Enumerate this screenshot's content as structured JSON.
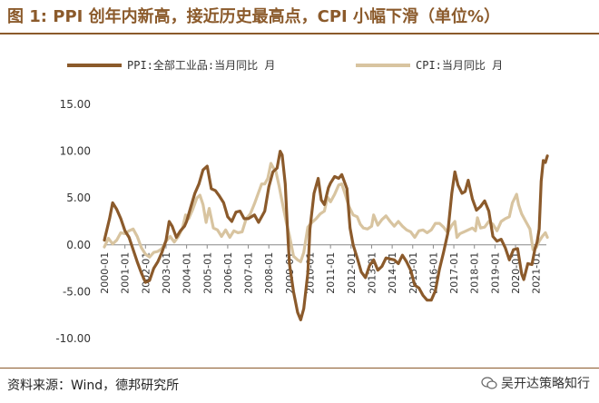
{
  "title": "图 1: PPI 创年内新高，接近历史最高点，CPI 小幅下滑（单位%）",
  "source": "资料来源：Wind，德邦研究所",
  "watermark": "吴开达策略知行",
  "colors": {
    "ppi": "#8b5a2b",
    "cpi": "#d8c4a0",
    "title": "#8b5a2b"
  },
  "chart_data": {
    "type": "line",
    "ylim": [
      -10,
      15
    ],
    "y_ticks": [
      -10,
      -5,
      0,
      5,
      10,
      15
    ],
    "y_tick_labels": [
      "-10.00",
      "-5.00",
      "0.00",
      "5.00",
      "10.00",
      "15.00"
    ],
    "x_tick_labels": [
      "2000-01",
      "2001-01",
      "2002-01",
      "2003-01",
      "2004-01",
      "2005-01",
      "2006-01",
      "2007-01",
      "2008-01",
      "2009-01",
      "2010-01",
      "2011-01",
      "2012-01",
      "2013-01",
      "2014-01",
      "2015-01",
      "2016-01",
      "2017-01",
      "2018-01",
      "2019-01",
      "2020-01",
      "2021-01"
    ],
    "xlim": [
      2000.0,
      2021.5
    ],
    "grid": false,
    "legend_position": "top",
    "series": [
      {
        "name": "PPI:全部工业品:当月同比 月",
        "color": "#8b5a2b",
        "points": [
          [
            2000.0,
            0.5
          ],
          [
            2000.25,
            2.8
          ],
          [
            2000.4,
            4.5
          ],
          [
            2000.6,
            3.8
          ],
          [
            2000.8,
            2.8
          ],
          [
            2001.0,
            1.5
          ],
          [
            2001.2,
            0.8
          ],
          [
            2001.4,
            -0.5
          ],
          [
            2001.6,
            -1.8
          ],
          [
            2001.8,
            -3.0
          ],
          [
            2002.0,
            -4.0
          ],
          [
            2002.2,
            -3.8
          ],
          [
            2002.4,
            -2.5
          ],
          [
            2002.6,
            -1.8
          ],
          [
            2002.8,
            -0.8
          ],
          [
            2003.0,
            0.5
          ],
          [
            2003.15,
            2.5
          ],
          [
            2003.3,
            2.0
          ],
          [
            2003.5,
            0.8
          ],
          [
            2003.7,
            1.5
          ],
          [
            2003.9,
            2.0
          ],
          [
            2004.0,
            2.5
          ],
          [
            2004.2,
            4.0
          ],
          [
            2004.4,
            5.5
          ],
          [
            2004.6,
            6.5
          ],
          [
            2004.8,
            8.0
          ],
          [
            2005.0,
            8.4
          ],
          [
            2005.2,
            6.0
          ],
          [
            2005.4,
            5.8
          ],
          [
            2005.6,
            5.2
          ],
          [
            2005.8,
            4.5
          ],
          [
            2006.0,
            3.0
          ],
          [
            2006.2,
            2.5
          ],
          [
            2006.4,
            3.5
          ],
          [
            2006.6,
            3.6
          ],
          [
            2006.8,
            2.8
          ],
          [
            2007.0,
            2.8
          ],
          [
            2007.3,
            3.2
          ],
          [
            2007.5,
            2.4
          ],
          [
            2007.8,
            3.6
          ],
          [
            2008.0,
            6.2
          ],
          [
            2008.2,
            7.8
          ],
          [
            2008.4,
            8.2
          ],
          [
            2008.55,
            10.0
          ],
          [
            2008.65,
            9.6
          ],
          [
            2008.8,
            6.5
          ],
          [
            2008.9,
            2.0
          ],
          [
            2009.0,
            -2.0
          ],
          [
            2009.2,
            -5.0
          ],
          [
            2009.4,
            -7.2
          ],
          [
            2009.55,
            -8.0
          ],
          [
            2009.7,
            -6.8
          ],
          [
            2009.9,
            -3.0
          ],
          [
            2010.0,
            1.7
          ],
          [
            2010.2,
            5.5
          ],
          [
            2010.4,
            7.1
          ],
          [
            2010.55,
            4.8
          ],
          [
            2010.7,
            4.3
          ],
          [
            2010.9,
            6.1
          ],
          [
            2011.0,
            6.6
          ],
          [
            2011.2,
            7.3
          ],
          [
            2011.4,
            7.1
          ],
          [
            2011.55,
            7.5
          ],
          [
            2011.8,
            6.0
          ],
          [
            2011.95,
            1.8
          ],
          [
            2012.1,
            0.0
          ],
          [
            2012.3,
            -1.4
          ],
          [
            2012.5,
            -2.9
          ],
          [
            2012.7,
            -3.5
          ],
          [
            2012.9,
            -2.2
          ],
          [
            2013.1,
            -1.6
          ],
          [
            2013.3,
            -2.7
          ],
          [
            2013.5,
            -2.3
          ],
          [
            2013.7,
            -1.4
          ],
          [
            2013.9,
            -1.5
          ],
          [
            2014.1,
            -1.6
          ],
          [
            2014.3,
            -2.0
          ],
          [
            2014.5,
            -1.1
          ],
          [
            2014.7,
            -1.8
          ],
          [
            2014.9,
            -2.7
          ],
          [
            2015.1,
            -4.3
          ],
          [
            2015.3,
            -4.6
          ],
          [
            2015.5,
            -5.4
          ],
          [
            2015.7,
            -5.9
          ],
          [
            2015.9,
            -5.9
          ],
          [
            2016.1,
            -4.9
          ],
          [
            2016.3,
            -2.6
          ],
          [
            2016.5,
            -0.8
          ],
          [
            2016.7,
            1.2
          ],
          [
            2016.9,
            5.5
          ],
          [
            2017.05,
            7.8
          ],
          [
            2017.2,
            6.4
          ],
          [
            2017.4,
            5.5
          ],
          [
            2017.55,
            5.7
          ],
          [
            2017.7,
            6.9
          ],
          [
            2017.9,
            4.9
          ],
          [
            2018.1,
            3.7
          ],
          [
            2018.3,
            4.1
          ],
          [
            2018.5,
            4.7
          ],
          [
            2018.7,
            3.6
          ],
          [
            2018.9,
            0.9
          ],
          [
            2019.1,
            0.4
          ],
          [
            2019.3,
            0.6
          ],
          [
            2019.5,
            -0.3
          ],
          [
            2019.7,
            -1.6
          ],
          [
            2019.9,
            -0.5
          ],
          [
            2020.1,
            -0.4
          ],
          [
            2020.3,
            -3.1
          ],
          [
            2020.4,
            -3.7
          ],
          [
            2020.6,
            -2.0
          ],
          [
            2020.8,
            -2.1
          ],
          [
            2020.95,
            -0.4
          ],
          [
            2021.05,
            0.3
          ],
          [
            2021.15,
            1.7
          ],
          [
            2021.25,
            6.8
          ],
          [
            2021.35,
            9.0
          ],
          [
            2021.45,
            8.8
          ],
          [
            2021.55,
            9.5
          ]
        ]
      },
      {
        "name": "CPI:当月同比 月",
        "color": "#d8c4a0",
        "points": [
          [
            2000.0,
            -0.2
          ],
          [
            2000.2,
            0.7
          ],
          [
            2000.4,
            0.1
          ],
          [
            2000.6,
            0.5
          ],
          [
            2000.8,
            1.3
          ],
          [
            2001.0,
            1.2
          ],
          [
            2001.2,
            1.5
          ],
          [
            2001.4,
            1.7
          ],
          [
            2001.6,
            0.9
          ],
          [
            2001.8,
            -0.3
          ],
          [
            2002.0,
            -1.0
          ],
          [
            2002.2,
            -1.3
          ],
          [
            2002.4,
            -0.8
          ],
          [
            2002.6,
            -0.7
          ],
          [
            2002.8,
            -0.4
          ],
          [
            2003.0,
            0.4
          ],
          [
            2003.2,
            0.9
          ],
          [
            2003.4,
            0.3
          ],
          [
            2003.6,
            0.9
          ],
          [
            2003.8,
            1.8
          ],
          [
            2003.95,
            3.2
          ],
          [
            2004.1,
            2.8
          ],
          [
            2004.3,
            3.8
          ],
          [
            2004.5,
            5.0
          ],
          [
            2004.65,
            5.3
          ],
          [
            2004.8,
            4.3
          ],
          [
            2004.95,
            2.4
          ],
          [
            2005.1,
            3.9
          ],
          [
            2005.3,
            1.8
          ],
          [
            2005.5,
            1.6
          ],
          [
            2005.7,
            0.9
          ],
          [
            2005.9,
            1.6
          ],
          [
            2006.1,
            0.8
          ],
          [
            2006.3,
            1.5
          ],
          [
            2006.5,
            1.3
          ],
          [
            2006.7,
            1.4
          ],
          [
            2006.9,
            2.8
          ],
          [
            2007.1,
            3.3
          ],
          [
            2007.3,
            4.4
          ],
          [
            2007.5,
            5.6
          ],
          [
            2007.65,
            6.5
          ],
          [
            2007.8,
            6.5
          ],
          [
            2007.95,
            7.1
          ],
          [
            2008.1,
            8.7
          ],
          [
            2008.2,
            8.3
          ],
          [
            2008.35,
            7.8
          ],
          [
            2008.5,
            6.3
          ],
          [
            2008.7,
            4.0
          ],
          [
            2008.85,
            2.4
          ],
          [
            2009.0,
            1.0
          ],
          [
            2009.2,
            -1.2
          ],
          [
            2009.4,
            -1.6
          ],
          [
            2009.55,
            -1.8
          ],
          [
            2009.7,
            -0.8
          ],
          [
            2009.9,
            1.9
          ],
          [
            2010.1,
            2.4
          ],
          [
            2010.3,
            2.8
          ],
          [
            2010.5,
            3.3
          ],
          [
            2010.7,
            3.6
          ],
          [
            2010.85,
            5.1
          ],
          [
            2011.0,
            4.6
          ],
          [
            2011.2,
            5.4
          ],
          [
            2011.4,
            6.4
          ],
          [
            2011.55,
            6.5
          ],
          [
            2011.7,
            5.5
          ],
          [
            2011.9,
            4.1
          ],
          [
            2012.1,
            3.2
          ],
          [
            2012.3,
            3.0
          ],
          [
            2012.45,
            2.2
          ],
          [
            2012.6,
            1.8
          ],
          [
            2012.8,
            1.7
          ],
          [
            2013.0,
            2.0
          ],
          [
            2013.1,
            3.2
          ],
          [
            2013.3,
            2.1
          ],
          [
            2013.5,
            2.7
          ],
          [
            2013.7,
            3.1
          ],
          [
            2013.9,
            2.5
          ],
          [
            2014.1,
            2.0
          ],
          [
            2014.3,
            2.5
          ],
          [
            2014.5,
            2.0
          ],
          [
            2014.7,
            1.6
          ],
          [
            2014.9,
            1.4
          ],
          [
            2015.1,
            0.8
          ],
          [
            2015.3,
            1.5
          ],
          [
            2015.5,
            1.6
          ],
          [
            2015.7,
            1.3
          ],
          [
            2015.9,
            1.6
          ],
          [
            2016.1,
            2.3
          ],
          [
            2016.3,
            2.3
          ],
          [
            2016.5,
            1.9
          ],
          [
            2016.7,
            1.3
          ],
          [
            2016.9,
            2.1
          ],
          [
            2017.05,
            2.5
          ],
          [
            2017.15,
            0.8
          ],
          [
            2017.3,
            1.2
          ],
          [
            2017.5,
            1.4
          ],
          [
            2017.7,
            1.6
          ],
          [
            2017.9,
            1.8
          ],
          [
            2018.05,
            1.5
          ],
          [
            2018.15,
            2.9
          ],
          [
            2018.3,
            1.8
          ],
          [
            2018.5,
            1.9
          ],
          [
            2018.7,
            2.5
          ],
          [
            2018.9,
            2.2
          ],
          [
            2019.1,
            1.5
          ],
          [
            2019.3,
            2.5
          ],
          [
            2019.5,
            2.8
          ],
          [
            2019.7,
            3.0
          ],
          [
            2019.85,
            4.5
          ],
          [
            2020.05,
            5.4
          ],
          [
            2020.15,
            4.3
          ],
          [
            2020.3,
            3.3
          ],
          [
            2020.5,
            2.5
          ],
          [
            2020.7,
            1.7
          ],
          [
            2020.85,
            -0.5
          ],
          [
            2021.0,
            -0.3
          ],
          [
            2021.15,
            0.4
          ],
          [
            2021.3,
            0.9
          ],
          [
            2021.45,
            1.3
          ],
          [
            2021.55,
            0.8
          ]
        ]
      }
    ]
  }
}
